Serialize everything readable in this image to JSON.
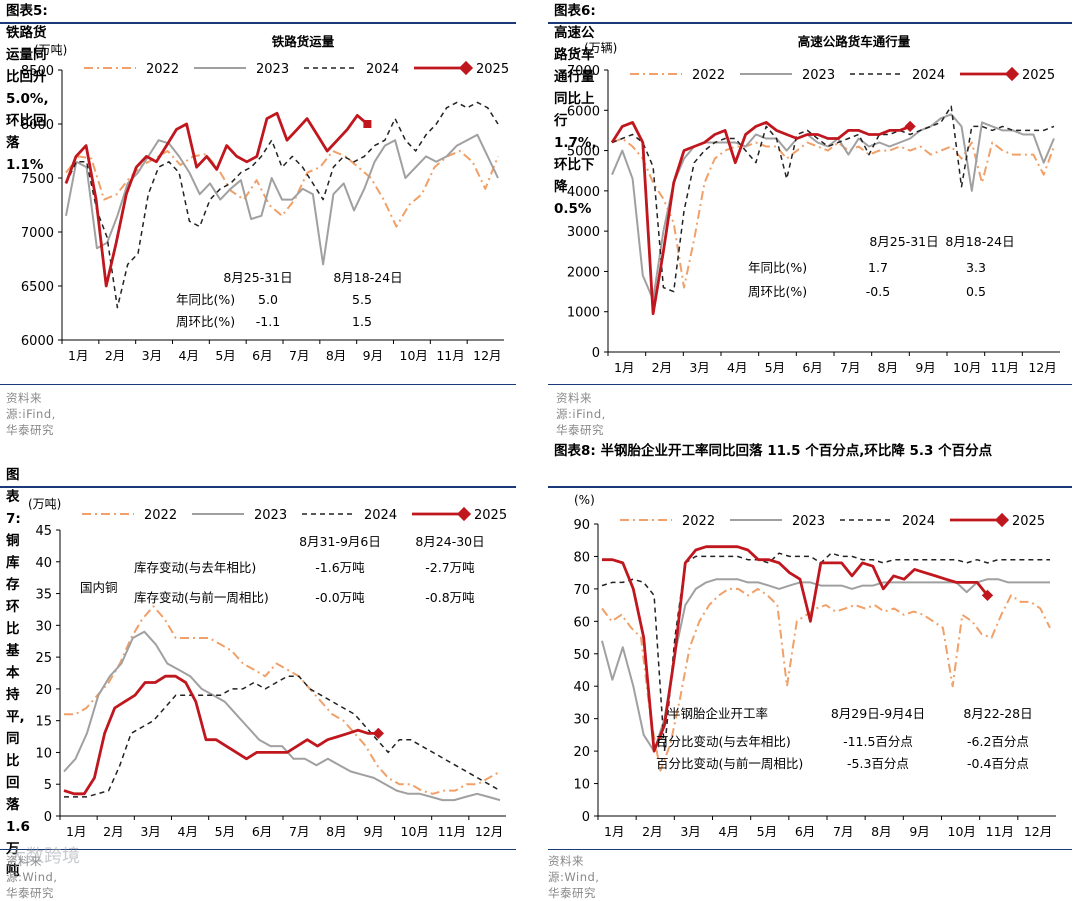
{
  "months": [
    "1月",
    "2月",
    "3月",
    "4月",
    "5月",
    "6月",
    "7月",
    "8月",
    "9月",
    "10月",
    "11月",
    "12月"
  ],
  "legend_labels": [
    "2022",
    "2023",
    "2024",
    "2025"
  ],
  "colors": {
    "y2022": "#f0a068",
    "y2023": "#a0a0a0",
    "y2024": "#222222",
    "y2025": "#c0161e"
  },
  "watermark": "大数跨境",
  "panels": [
    {
      "id": "p5",
      "heading": "图表5:  铁路货运量同比回升 5.0%,环比回落 1.1%",
      "source": "资料来源:iFind,华泰研究",
      "chart_data": {
        "type": "line",
        "title": "铁路货运量",
        "ylabel": "(万吨)",
        "ylim": [
          6000,
          8500
        ],
        "yticks": [
          6000,
          6500,
          7000,
          7500,
          8000,
          8500
        ],
        "series": [
          {
            "name": "2022",
            "values": [
              7550,
              7700,
              7680,
              7300,
              7350,
              7500,
              7620,
              7680,
              7750,
              7620,
              7700,
              7720,
              7580,
              7380,
              7300,
              7480,
              7250,
              7150,
              7300,
              7550,
              7600,
              7750,
              7700,
              7600,
              7500,
              7300,
              7050,
              7250,
              7350,
              7600,
              7700,
              7750,
              7650,
              7400,
              7700
            ]
          },
          {
            "name": "2023",
            "values": [
              7150,
              7650,
              7600,
              6850,
              6900,
              7150,
              7450,
              7550,
              7700,
              7850,
              7820,
              7700,
              7550,
              7350,
              7450,
              7300,
              7400,
              7480,
              7120,
              7150,
              7500,
              7300,
              7300,
              7400,
              7350,
              6700,
              7350,
              7450,
              7200,
              7400,
              7650,
              7800,
              7850,
              7500,
              7600,
              7700,
              7650,
              7700,
              7800,
              7850,
              7900,
              7700,
              7500
            ]
          },
          {
            "name": "2024",
            "values": [
              7450,
              7650,
              7650,
              7200,
              6950,
              6300,
              6700,
              6800,
              7350,
              7600,
              7650,
              7550,
              7100,
              7050,
              7300,
              7400,
              7450,
              7550,
              7600,
              7700,
              7850,
              7600,
              7700,
              7600,
              7450,
              7300,
              7600,
              7700,
              7650,
              7700,
              7800,
              7850,
              8050,
              7850,
              7750,
              7900,
              8000,
              8150,
              8200,
              8150,
              8200,
              8150,
              8000
            ]
          },
          {
            "name": "2025",
            "values": [
              7450,
              7700,
              7800,
              7300,
              6500,
              6900,
              7350,
              7600,
              7700,
              7650,
              7800,
              7950,
              8000,
              7600,
              7700,
              7580,
              7800,
              7700,
              7650,
              7700,
              8050,
              8100,
              7850,
              7950,
              8050,
              7900,
              7750,
              7850,
              7950,
              8080,
              8000
            ]
          }
        ],
        "annotation": {
          "columns": [
            "8月25-31日",
            "8月18-24日"
          ],
          "rows": [
            {
              "label": "年同比(%)",
              "values": [
                "5.0",
                "5.5"
              ]
            },
            {
              "label": "周环比(%)",
              "values": [
                "-1.1",
                "1.5"
              ]
            }
          ]
        }
      }
    },
    {
      "id": "p6",
      "heading": "图表6:  高速公路货车通行量同比上行 1.7%,环比下降 0.5%",
      "source": "资料来源:iFind,华泰研究",
      "chart_data": {
        "type": "line",
        "title": "高速公路货车通行量",
        "ylabel": "(万辆)",
        "ylim": [
          0,
          7000
        ],
        "yticks": [
          0,
          1000,
          2000,
          3000,
          4000,
          5000,
          6000,
          7000
        ],
        "series": [
          {
            "name": "2022",
            "values": [
              5200,
              5300,
              5100,
              4800,
              4200,
              3800,
              3200,
              1600,
              2800,
              4200,
              4800,
              5000,
              5100,
              5100,
              5200,
              5100,
              5100,
              4800,
              5000,
              5200,
              5100,
              5000,
              5200,
              5000,
              5100,
              4900,
              5000,
              5000,
              5100,
              5000,
              5100,
              4900,
              5000,
              5100,
              4800,
              5200,
              4200,
              5200,
              5000,
              4900,
              4900,
              4900,
              4400,
              5100
            ]
          },
          {
            "name": "2023",
            "values": [
              4400,
              5000,
              4300,
              1900,
              1300,
              3000,
              4200,
              4800,
              5100,
              5200,
              5200,
              5200,
              5200,
              5100,
              5400,
              5300,
              5300,
              5000,
              5300,
              5400,
              5200,
              5100,
              5300,
              4900,
              5300,
              5100,
              5200,
              5100,
              5200,
              5300,
              5500,
              5600,
              5800,
              5900,
              5600,
              4000,
              5700,
              5600,
              5500,
              5500,
              5400,
              5400,
              4700,
              5300
            ]
          },
          {
            "name": "2024",
            "values": [
              5200,
              5300,
              5400,
              5200,
              4600,
              1600,
              1500,
              3500,
              4700,
              5000,
              5200,
              5300,
              5300,
              5000,
              4700,
              5600,
              5300,
              4300,
              5400,
              5500,
              5300,
              5100,
              5200,
              5300,
              5400,
              4900,
              5400,
              5400,
              5500,
              5400,
              5500,
              5600,
              5700,
              6100,
              4100,
              5600,
              5600,
              5500,
              5600,
              5500,
              5500,
              5500,
              5500,
              5600
            ]
          },
          {
            "name": "2025",
            "values": [
              5200,
              5600,
              5700,
              5200,
              950,
              2500,
              4200,
              5000,
              5100,
              5200,
              5400,
              5500,
              4700,
              5400,
              5600,
              5700,
              5500,
              5400,
              5300,
              5400,
              5400,
              5300,
              5300,
              5500,
              5500,
              5400,
              5400,
              5500,
              5500,
              5600
            ]
          }
        ],
        "annotation": {
          "columns": [
            "8月25-31日",
            "8月18-24日"
          ],
          "rows": [
            {
              "label": "年同比(%)",
              "values": [
                "1.7",
                "3.3"
              ]
            },
            {
              "label": "周环比(%)",
              "values": [
                "-0.5",
                "0.5"
              ]
            }
          ]
        }
      }
    },
    {
      "id": "p7",
      "heading": "图表7:  铜库存环比基本持平,同比回落 1.6 万吨",
      "source": "资料来源:Wind,华泰研究",
      "chart_data": {
        "type": "line",
        "title": "",
        "ylabel": "(万吨)",
        "ylim": [
          0,
          45
        ],
        "yticks": [
          0,
          5,
          10,
          15,
          20,
          25,
          30,
          35,
          40,
          45
        ],
        "series_label": "国内铜",
        "series": [
          {
            "name": "2022",
            "values": [
              16,
              16,
              17,
              19,
              21,
              24,
              28,
              31,
              33,
              31,
              28,
              28,
              28,
              28,
              27,
              26,
              24,
              23,
              22,
              24,
              23,
              22,
              20,
              18,
              16,
              15,
              13,
              11,
              8,
              6,
              5,
              5,
              4,
              3.5,
              4,
              4,
              5,
              5,
              6,
              7
            ]
          },
          {
            "name": "2023",
            "values": [
              7,
              9,
              13,
              19,
              22,
              24,
              28,
              29,
              27,
              24,
              23,
              22,
              20,
              19,
              18,
              16,
              14,
              12,
              11,
              11,
              9,
              9,
              8,
              9,
              8,
              7,
              6.5,
              6,
              5,
              4,
              3.5,
              3.5,
              3,
              2.5,
              2.5,
              3,
              3.5,
              3,
              2.5
            ]
          },
          {
            "name": "2024",
            "values": [
              3,
              3,
              3,
              3.5,
              4,
              8,
              13,
              14,
              15,
              17,
              19,
              19,
              19,
              19,
              19,
              20,
              20,
              21,
              20,
              21,
              22,
              22,
              20,
              19,
              18,
              17,
              16,
              14,
              12,
              10,
              12,
              12,
              11,
              10,
              9,
              8,
              7,
              6,
              5,
              4
            ]
          },
          {
            "name": "2025",
            "values": [
              4,
              3.5,
              3.5,
              6,
              13,
              17,
              18,
              19,
              21,
              21,
              22,
              22,
              21,
              18,
              12,
              12,
              11,
              10,
              9,
              10,
              10,
              10,
              10,
              11,
              12,
              11,
              12,
              12.5,
              13,
              13.5,
              13,
              13
            ]
          }
        ],
        "annotation": {
          "columns": [
            "8月31-9月6日",
            "8月24-30日"
          ],
          "rows": [
            {
              "label": "库存变动(与去年相比)",
              "values": [
                "-1.6万吨",
                "-2.7万吨"
              ]
            },
            {
              "label": "库存变动(与前一周相比)",
              "values": [
                "-0.0万吨",
                "-0.8万吨"
              ]
            }
          ]
        }
      }
    },
    {
      "id": "p8",
      "heading": "图表8:  半钢胎企业开工率同比回落 11.5 个百分点,环比降 5.3 个百分点",
      "source": "资料来源:Wind,华泰研究",
      "chart_data": {
        "type": "line",
        "title": "",
        "ylabel": "(%)",
        "ylim": [
          0,
          90
        ],
        "yticks": [
          0,
          10,
          20,
          30,
          40,
          50,
          60,
          70,
          80,
          90
        ],
        "series_label": "半钢胎企业开工率",
        "series": [
          {
            "name": "2022",
            "values": [
              64,
              60,
              62,
              58,
              55,
              30,
              14,
              22,
              36,
              52,
              60,
              65,
              68,
              70,
              70,
              68,
              70,
              68,
              65,
              40,
              60,
              62,
              64,
              65,
              63,
              64,
              65,
              64,
              65,
              63,
              64,
              62,
              63,
              62,
              60,
              58,
              40,
              62,
              60,
              56,
              55,
              62,
              68,
              66,
              66,
              64,
              58
            ]
          },
          {
            "name": "2023",
            "values": [
              54,
              42,
              52,
              40,
              25,
              20,
              30,
              50,
              65,
              70,
              72,
              73,
              73,
              73,
              72,
              72,
              71,
              70,
              71,
              72,
              72,
              71,
              71,
              71,
              70,
              71,
              71,
              72,
              72,
              72,
              72,
              72,
              72,
              72,
              72,
              69,
              72,
              73,
              73,
              72,
              72,
              72,
              72,
              72
            ]
          },
          {
            "name": "2024",
            "values": [
              71,
              72,
              72,
              73,
              72,
              68,
              20,
              55,
              78,
              80,
              80,
              80,
              80,
              80,
              79,
              79,
              78,
              81,
              80,
              80,
              80,
              78,
              81,
              80,
              80,
              79,
              79,
              78,
              79,
              79,
              79,
              79,
              79,
              79,
              79,
              78,
              79,
              78,
              79,
              79,
              79,
              79,
              79,
              79
            ]
          },
          {
            "name": "2025",
            "values": [
              79,
              79,
              78,
              70,
              55,
              20,
              28,
              50,
              78,
              82,
              83,
              83,
              83,
              83,
              82,
              79,
              79,
              78,
              75,
              73,
              60,
              78,
              78,
              78,
              74,
              78,
              77,
              70,
              74,
              73,
              76,
              75,
              74,
              73,
              72,
              72,
              72,
              68
            ]
          }
        ],
        "annotation": {
          "columns": [
            "8月29日-9月4日",
            "8月22-28日"
          ],
          "rows": [
            {
              "label": "百分比变动(与去年相比)",
              "values": [
                "-11.5百分点",
                "-6.2百分点"
              ]
            },
            {
              "label": "百分比变动(与前一周相比)",
              "values": [
                "-5.3百分点",
                "-0.4百分点"
              ]
            }
          ]
        }
      }
    }
  ]
}
